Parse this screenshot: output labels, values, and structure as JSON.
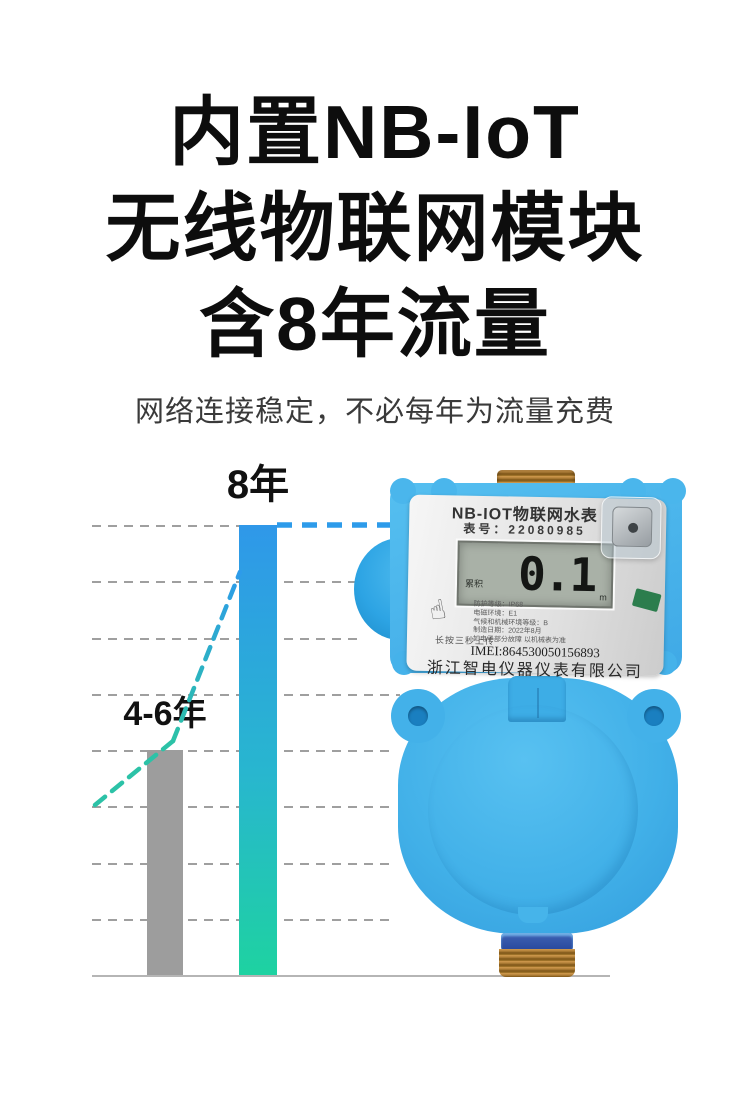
{
  "headline": {
    "line1": "内置NB-IoT",
    "line2": "无线物联网模块",
    "line3": "含8年流量"
  },
  "subtitle": {
    "text": "网络连接稳定，不必每年为流量充费"
  },
  "chart_data": {
    "type": "bar",
    "categories": [
      "4-6年",
      "8年"
    ],
    "values": [
      4,
      8
    ],
    "unit": "年",
    "title": "",
    "xlabel": "",
    "ylabel": "",
    "ylim": [
      0,
      8
    ],
    "gridline_step": 1,
    "grid_dashed": true,
    "bar_colors": [
      "#9d9d9d",
      "gradient #2f98e9 → #1ed2a1"
    ],
    "annotations": [
      "dashed trend line rising from baseline over 4-6年 bar up to 8年 bar",
      "horizontal blue dashed connector from 8年 bar top to product photo"
    ],
    "trend_colors": {
      "teal": "#2cc2a7",
      "blue": "#2d9bea"
    },
    "gridline_color": "#9f9f9f",
    "baseline_color": "#b5b5b5"
  },
  "meter": {
    "title": "NB-IOT物联网水表",
    "serial_line": "表号：22080985",
    "lcd": {
      "label": "累积",
      "value": "0.1",
      "unit": "m"
    },
    "hold_hint": "长按三秒上传",
    "hand_icon": "☝",
    "specs": [
      "防护等级：IP68",
      "电磁环境：E1",
      "气候和机械环境等级：B",
      "制造日期：2022年8月",
      "如电子部分故障 以机械表为准"
    ],
    "imei": "IMEI:864530050156893",
    "company": "浙江智电仪器仪表有限公司"
  },
  "colors": {
    "headline": "#0d0d0d",
    "subtitle": "#3a3a3a",
    "meter_body_blue": "#45b4ec",
    "faceplate_gray": "#e9e9e9",
    "lcd_bg": "#a9b1a7",
    "brass": "#b9803a",
    "bottom_collar_blue": "#2b4fa3"
  }
}
